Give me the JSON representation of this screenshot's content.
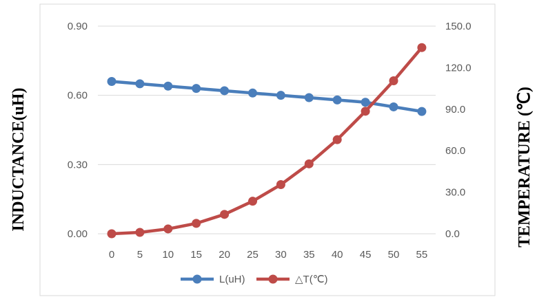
{
  "chart_data": {
    "type": "line",
    "x": [
      0,
      5,
      10,
      15,
      20,
      25,
      30,
      35,
      40,
      45,
      50,
      55
    ],
    "series": [
      {
        "name": "L(uH)",
        "axis": "left",
        "color": "#4a7ebb",
        "values": [
          0.66,
          0.65,
          0.64,
          0.63,
          0.62,
          0.61,
          0.6,
          0.59,
          0.58,
          0.57,
          0.55,
          0.53
        ]
      },
      {
        "name": "△T(℃)",
        "axis": "right",
        "color": "#be4b48",
        "values": [
          0,
          1,
          3.5,
          7.5,
          14,
          23.5,
          35.5,
          50.5,
          68,
          88.5,
          110.5,
          134.5
        ]
      }
    ],
    "ylabel": "INDUCTANCE(uH)",
    "y2label": "TEMPERATURE (℃)",
    "ylim": [
      0,
      0.9
    ],
    "y2lim": [
      0,
      150
    ],
    "yticks": [
      "0.00",
      "0.30",
      "0.60",
      "0.90"
    ],
    "y2ticks": [
      "0.0",
      "30.0",
      "60.0",
      "90.0",
      "120.0",
      "150.0"
    ],
    "grid": true,
    "legend": "bottom"
  }
}
